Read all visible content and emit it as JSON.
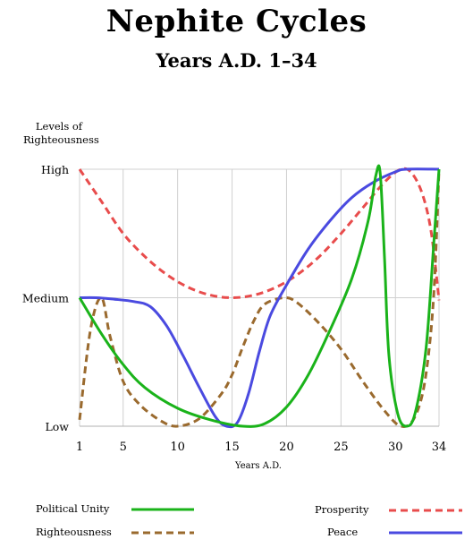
{
  "chart_data": {
    "type": "line",
    "title": "Nephite Cycles",
    "subtitle": "Years A.D. 1–34",
    "ylabel": "Levels of Righteousness",
    "xlabel": "Years A.D.",
    "xlim": [
      1,
      34
    ],
    "ylim": [
      0,
      2
    ],
    "x_ticks": [
      1,
      5,
      10,
      15,
      20,
      25,
      30,
      34
    ],
    "y_ticks": [
      {
        "value": 0,
        "label": "Low"
      },
      {
        "value": 1,
        "label": "Medium"
      },
      {
        "value": 2,
        "label": "High"
      }
    ],
    "grid": true,
    "legend_position": "bottom",
    "series": [
      {
        "name": "Political Unity",
        "color": "#1ab31a",
        "style": "solid",
        "points": [
          [
            1,
            1.0
          ],
          [
            3,
            0.72
          ],
          [
            5,
            0.48
          ],
          [
            7,
            0.3
          ],
          [
            10,
            0.14
          ],
          [
            13,
            0.05
          ],
          [
            16,
            0.0
          ],
          [
            18,
            0.02
          ],
          [
            20,
            0.15
          ],
          [
            22,
            0.4
          ],
          [
            24,
            0.75
          ],
          [
            26,
            1.15
          ],
          [
            27.5,
            1.6
          ],
          [
            28.2,
            1.95
          ],
          [
            28.6,
            1.97
          ],
          [
            29,
            1.3
          ],
          [
            29.4,
            0.55
          ],
          [
            30.2,
            0.1
          ],
          [
            31,
            0.0
          ],
          [
            31.8,
            0.1
          ],
          [
            32.8,
            0.6
          ],
          [
            33.5,
            1.4
          ],
          [
            34,
            2.0
          ]
        ]
      },
      {
        "name": "Righteousness",
        "color": "#9a6a2e",
        "style": "dashed",
        "points": [
          [
            1,
            0.05
          ],
          [
            2,
            0.75
          ],
          [
            3,
            1.0
          ],
          [
            3.8,
            0.7
          ],
          [
            5,
            0.35
          ],
          [
            6.5,
            0.17
          ],
          [
            8.5,
            0.04
          ],
          [
            10,
            0.0
          ],
          [
            12,
            0.06
          ],
          [
            14,
            0.25
          ],
          [
            15,
            0.4
          ],
          [
            16,
            0.62
          ],
          [
            17,
            0.82
          ],
          [
            18,
            0.95
          ],
          [
            19.8,
            1.0
          ],
          [
            21,
            0.96
          ],
          [
            23,
            0.8
          ],
          [
            25,
            0.6
          ],
          [
            27,
            0.35
          ],
          [
            29,
            0.12
          ],
          [
            30.5,
            0.0
          ],
          [
            31.7,
            0.06
          ],
          [
            32.7,
            0.35
          ],
          [
            33.5,
            1.0
          ],
          [
            34,
            2.0
          ]
        ]
      },
      {
        "name": "Prosperity",
        "color": "#e84c4c",
        "style": "dashed",
        "points": [
          [
            1,
            2.0
          ],
          [
            3,
            1.75
          ],
          [
            5,
            1.5
          ],
          [
            7,
            1.32
          ],
          [
            9,
            1.18
          ],
          [
            11,
            1.08
          ],
          [
            13,
            1.02
          ],
          [
            15,
            1.0
          ],
          [
            17,
            1.02
          ],
          [
            19,
            1.08
          ],
          [
            21,
            1.18
          ],
          [
            23,
            1.32
          ],
          [
            25,
            1.5
          ],
          [
            27,
            1.7
          ],
          [
            29,
            1.9
          ],
          [
            30.5,
            2.0
          ],
          [
            31.5,
            1.97
          ],
          [
            32.5,
            1.8
          ],
          [
            33.3,
            1.5
          ],
          [
            34,
            0.98
          ]
        ]
      },
      {
        "name": "Peace",
        "color": "#4a4ae0",
        "style": "solid",
        "points": [
          [
            1,
            1.0
          ],
          [
            2.5,
            1.0
          ],
          [
            4,
            0.99
          ],
          [
            6,
            0.97
          ],
          [
            7.5,
            0.93
          ],
          [
            9,
            0.78
          ],
          [
            10.5,
            0.55
          ],
          [
            12,
            0.3
          ],
          [
            13.5,
            0.07
          ],
          [
            14.5,
            0.0
          ],
          [
            15.5,
            0.03
          ],
          [
            16.5,
            0.25
          ],
          [
            17.5,
            0.58
          ],
          [
            18.5,
            0.86
          ],
          [
            20,
            1.1
          ],
          [
            22,
            1.38
          ],
          [
            24,
            1.6
          ],
          [
            26,
            1.78
          ],
          [
            28,
            1.9
          ],
          [
            30,
            1.98
          ],
          [
            31,
            2.0
          ],
          [
            34,
            2.0
          ]
        ]
      }
    ]
  },
  "legend": [
    {
      "name": "Political Unity",
      "color": "#1ab31a",
      "style": "solid"
    },
    {
      "name": "Righteousness",
      "color": "#9a6a2e",
      "style": "dashed"
    },
    {
      "name": "Prosperity",
      "color": "#e84c4c",
      "style": "dashed"
    },
    {
      "name": "Peace",
      "color": "#4a4ae0",
      "style": "solid"
    }
  ]
}
